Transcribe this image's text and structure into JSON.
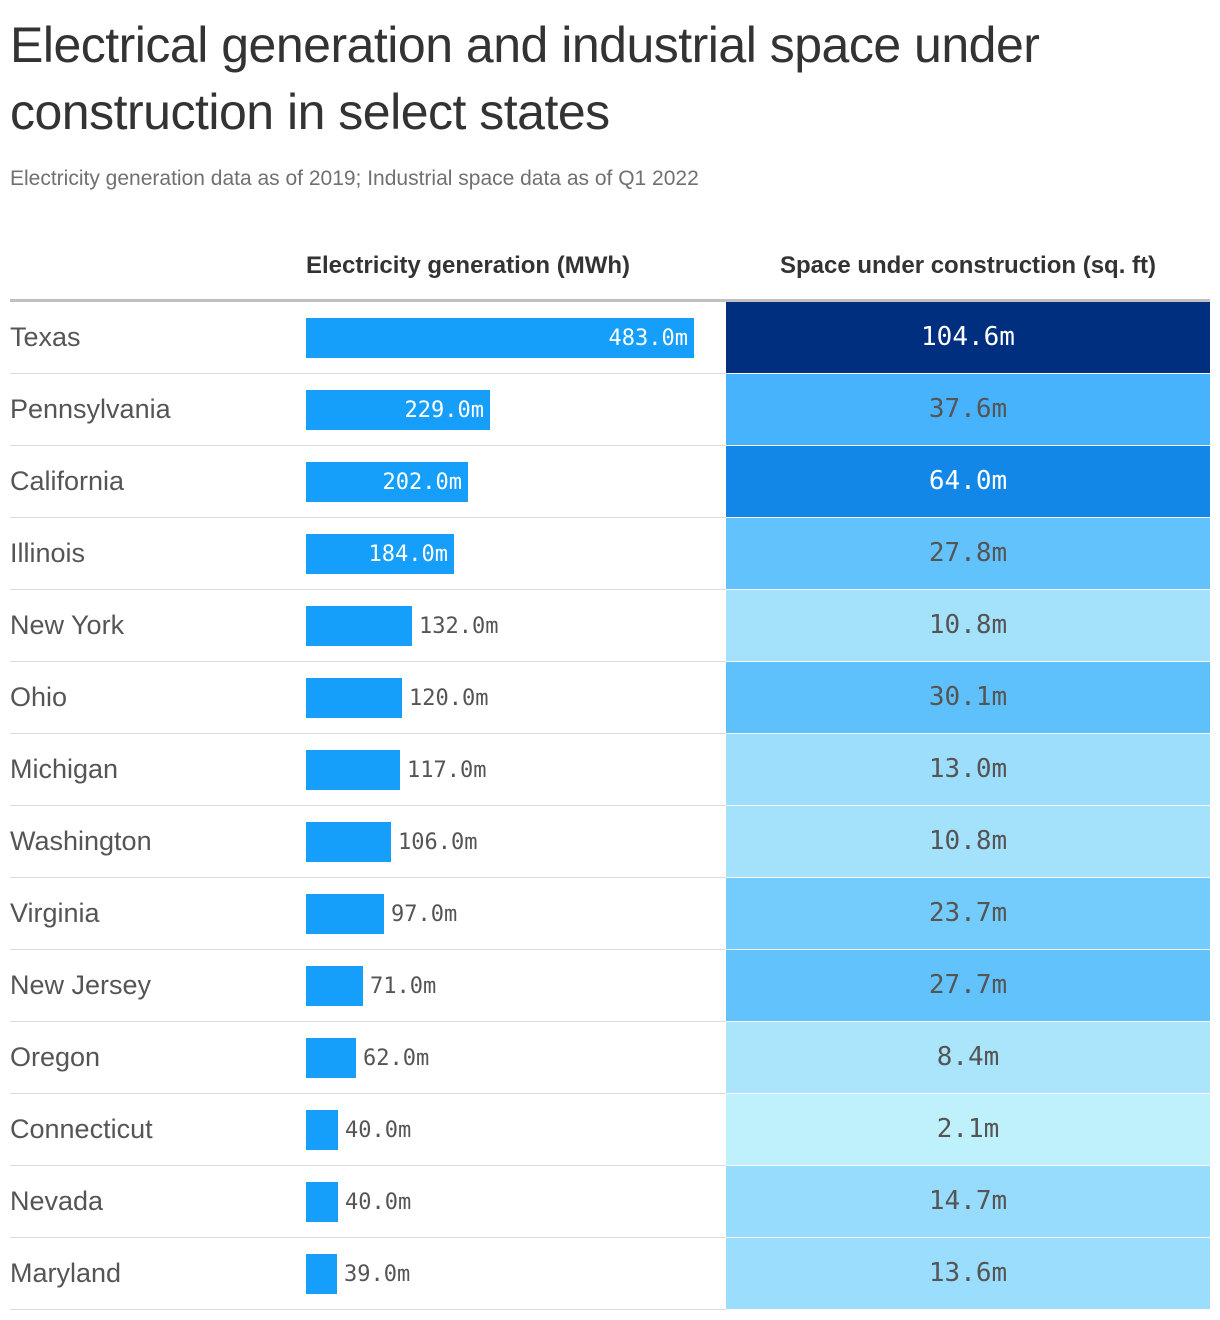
{
  "title": "Electrical generation and industrial space under construction in select states",
  "subtitle": "Electricity generation data as of 2019; Industrial space data as of Q1 2022",
  "chart_data": {
    "type": "table",
    "columns": [
      "",
      "Electricity generation (MWh)",
      "Space under construction (sq. ft)"
    ],
    "gen_max": 483,
    "rows": [
      {
        "state": "Texas",
        "gen": 483,
        "gen_label": "483.0m",
        "space": 104.6,
        "space_label": "104.6m",
        "cell_color": "#002f7f",
        "cell_text": "#ffffff"
      },
      {
        "state": "Pennsylvania",
        "gen": 229,
        "gen_label": "229.0m",
        "space": 37.6,
        "space_label": "37.6m",
        "cell_color": "#48b3fd",
        "cell_text": "#555555"
      },
      {
        "state": "California",
        "gen": 202,
        "gen_label": "202.0m",
        "space": 64.0,
        "space_label": "64.0m",
        "cell_color": "#1387e8",
        "cell_text": "#ffffff"
      },
      {
        "state": "Illinois",
        "gen": 184,
        "gen_label": "184.0m",
        "space": 27.8,
        "space_label": "27.8m",
        "cell_color": "#62c3fc",
        "cell_text": "#555555"
      },
      {
        "state": "New York",
        "gen": 132,
        "gen_label": "132.0m",
        "space": 10.8,
        "space_label": "10.8m",
        "cell_color": "#a4e2fc",
        "cell_text": "#555555"
      },
      {
        "state": "Ohio",
        "gen": 120,
        "gen_label": "120.0m",
        "space": 30.1,
        "space_label": "30.1m",
        "cell_color": "#5fc1fc",
        "cell_text": "#555555"
      },
      {
        "state": "Michigan",
        "gen": 117,
        "gen_label": "117.0m",
        "space": 13.0,
        "space_label": "13.0m",
        "cell_color": "#9edefd",
        "cell_text": "#555555"
      },
      {
        "state": "Washington",
        "gen": 106,
        "gen_label": "106.0m",
        "space": 10.8,
        "space_label": "10.8m",
        "cell_color": "#a4e2fc",
        "cell_text": "#555555"
      },
      {
        "state": "Virginia",
        "gen": 97,
        "gen_label": "97.0m",
        "space": 23.7,
        "space_label": "23.7m",
        "cell_color": "#74ccfd",
        "cell_text": "#555555"
      },
      {
        "state": "New Jersey",
        "gen": 71,
        "gen_label": "71.0m",
        "space": 27.7,
        "space_label": "27.7m",
        "cell_color": "#62c3fc",
        "cell_text": "#555555"
      },
      {
        "state": "Oregon",
        "gen": 62,
        "gen_label": "62.0m",
        "space": 8.4,
        "space_label": "8.4m",
        "cell_color": "#aae5fc",
        "cell_text": "#555555"
      },
      {
        "state": "Connecticut",
        "gen": 40,
        "gen_label": "40.0m",
        "space": 2.1,
        "space_label": "2.1m",
        "cell_color": "#bff1fc",
        "cell_text": "#555555"
      },
      {
        "state": "Nevada",
        "gen": 40,
        "gen_label": "40.0m",
        "space": 14.7,
        "space_label": "14.7m",
        "cell_color": "#97dbfd",
        "cell_text": "#555555"
      },
      {
        "state": "Maryland",
        "gen": 39,
        "gen_label": "39.0m",
        "space": 13.6,
        "space_label": "13.6m",
        "cell_color": "#9bddfd",
        "cell_text": "#555555"
      }
    ]
  }
}
